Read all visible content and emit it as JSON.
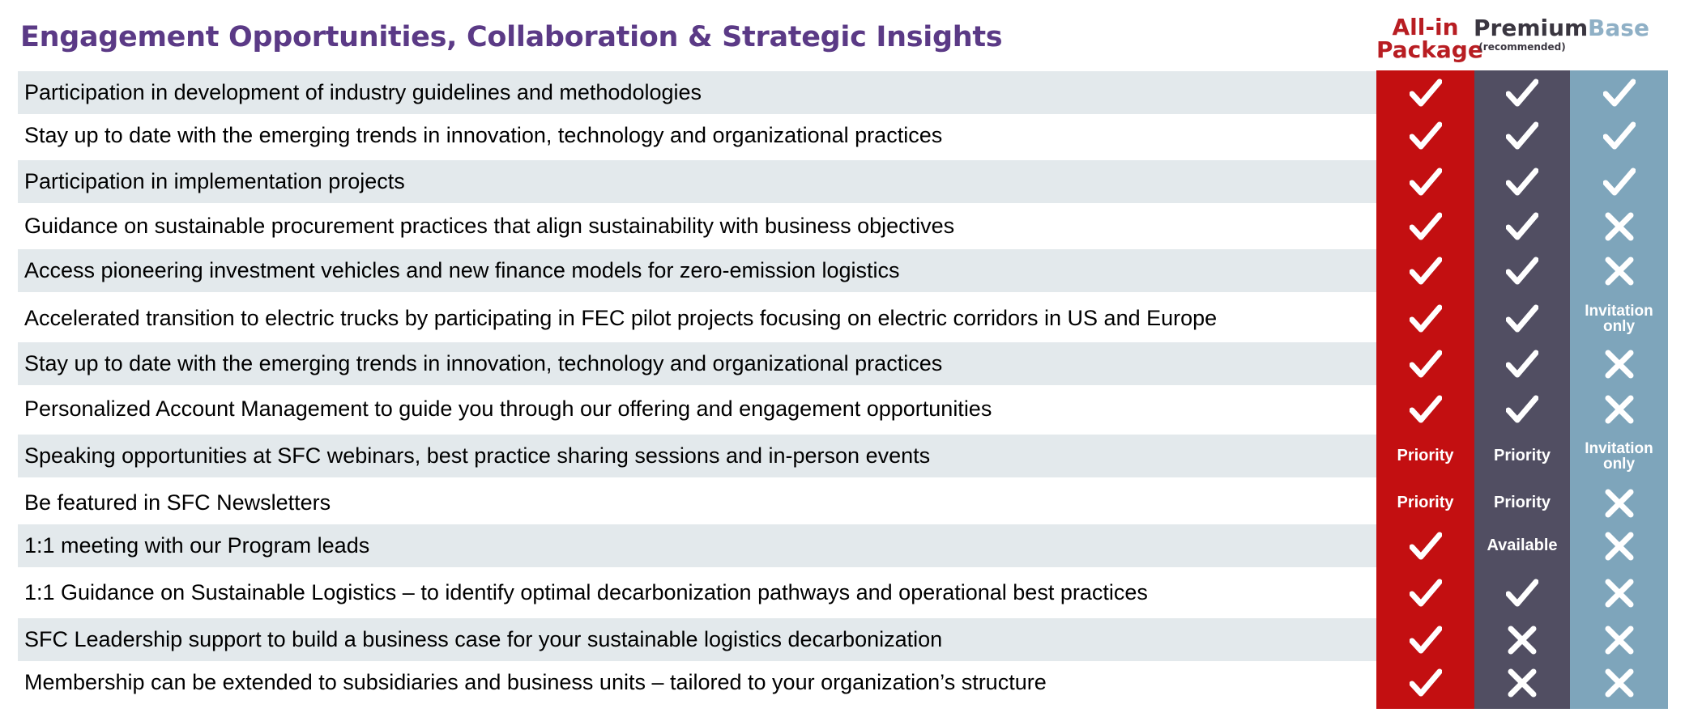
{
  "title": "Engagement Opportunities, Collaboration & Strategic Insights",
  "colors": {
    "title": "#5b3a86",
    "all_in": "#c30f11",
    "premium": "#514e62",
    "base": "#7ea5bb",
    "row_alt": "#e3e9ec",
    "mark": "#ffffff"
  },
  "columns": [
    {
      "key": "allin",
      "label": "All-in Package",
      "label_line1": "All-in",
      "label_line2": "Package",
      "color": "#c30f11",
      "header_color": "#b81d22"
    },
    {
      "key": "premium",
      "label": "Premium",
      "sub": "(recommended)",
      "color": "#514e62",
      "header_color": "#3a3640"
    },
    {
      "key": "base",
      "label": "Base",
      "color": "#7ea5bb",
      "header_color": "#8fb0c6"
    }
  ],
  "rows": [
    {
      "feature": "Participation in development of industry guidelines and methodologies",
      "allin": "check",
      "premium": "check",
      "base": "check"
    },
    {
      "feature": "Stay up to date with the emerging trends in innovation, technology and organizational practices",
      "allin": "check",
      "premium": "check",
      "base": "check"
    },
    {
      "feature": "Participation in implementation projects",
      "allin": "check",
      "premium": "check",
      "base": "check"
    },
    {
      "feature": "Guidance on sustainable procurement practices that align sustainability with business objectives",
      "allin": "check",
      "premium": "check",
      "base": "cross"
    },
    {
      "feature": "Access pioneering investment vehicles and new finance models for zero-emission logistics",
      "allin": "check",
      "premium": "check",
      "base": "cross"
    },
    {
      "feature": "Accelerated transition to electric trucks by participating in FEC pilot projects focusing on electric corridors in US and Europe",
      "allin": "check",
      "premium": "check",
      "base": "Invitation only"
    },
    {
      "feature": "Stay up to date with the emerging trends in innovation, technology and organizational practices",
      "allin": "check",
      "premium": "check",
      "base": "cross"
    },
    {
      "feature": "Personalized Account Management to guide you through our offering and engagement opportunities",
      "allin": "check",
      "premium": "check",
      "base": "cross"
    },
    {
      "feature": "Speaking opportunities at SFC webinars, best practice sharing sessions and in-person events",
      "allin": "Priority",
      "premium": "Priority",
      "base": "Invitation only"
    },
    {
      "feature": "Be featured in SFC Newsletters",
      "allin": "Priority",
      "premium": "Priority",
      "base": "cross"
    },
    {
      "feature": "1:1 meeting with our Program leads",
      "allin": "check",
      "premium": "Available",
      "base": "cross"
    },
    {
      "feature": "1:1 Guidance on Sustainable Logistics – to identify optimal decarbonization pathways and operational best practices",
      "allin": "check",
      "premium": "check",
      "base": "cross"
    },
    {
      "feature": "SFC Leadership support to build a business case for your sustainable logistics decarbonization",
      "allin": "check",
      "premium": "cross",
      "base": "cross"
    },
    {
      "feature": "Membership can be extended to subsidiaries and business units – tailored to your organization’s structure",
      "allin": "check",
      "premium": "cross",
      "base": "cross"
    }
  ]
}
